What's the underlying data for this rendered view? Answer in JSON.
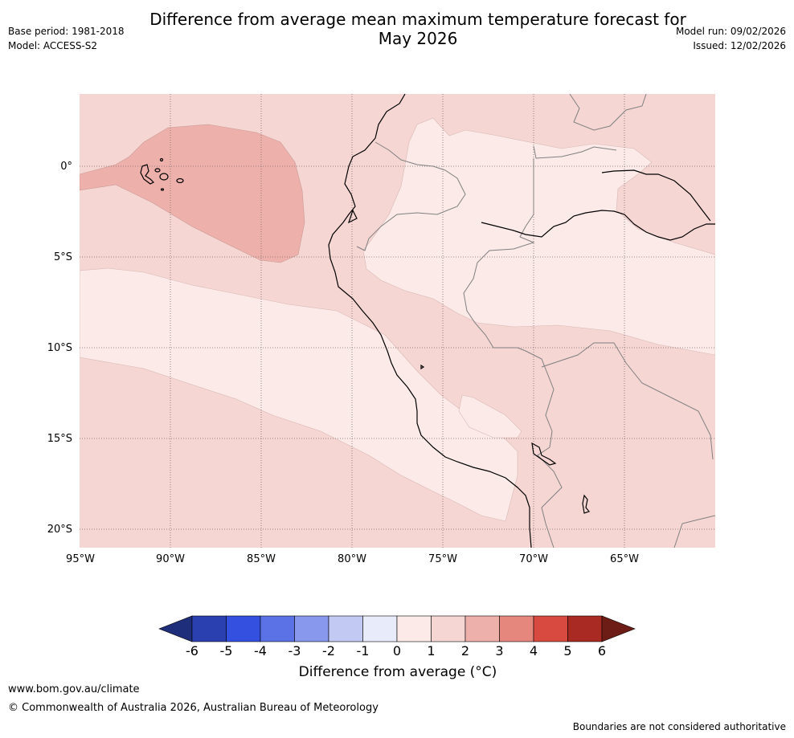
{
  "header": {
    "title_line1": "Difference from average mean maximum temperature forecast for",
    "title_line2": "May 2026",
    "base_period": "Base period: 1981-2018",
    "model": "Model: ACCESS-S2",
    "model_run": "Model run: 09/02/2026",
    "issued": "Issued: 12/02/2026"
  },
  "map": {
    "lat_labels": [
      "0°",
      "5°S",
      "10°S",
      "15°S",
      "20°S"
    ],
    "lon_labels": [
      "95°W",
      "90°W",
      "85°W",
      "80°W",
      "75°W",
      "70°W",
      "65°W"
    ],
    "colors": {
      "band_0_1": "#fbeae8",
      "band_1_2": "#f5d6d3",
      "band_2_3": "#eeb0aa",
      "coast": "#000000",
      "border": "#808080",
      "grid": "#7a6a6a"
    }
  },
  "colorbar": {
    "ticks": [
      "-6",
      "-5",
      "-4",
      "-3",
      "-2",
      "-1",
      "0",
      "1",
      "2",
      "3",
      "4",
      "5",
      "6"
    ],
    "colors": [
      "#1f2e7a",
      "#2a3fb0",
      "#3350e0",
      "#5a72e6",
      "#8898ec",
      "#c2caf3",
      "#e8ebfa",
      "#fbeae8",
      "#f5d6d3",
      "#eeb0aa",
      "#e6877d",
      "#d84a3f",
      "#a82a22",
      "#6e1c16"
    ],
    "label": "Difference from average (°C)"
  },
  "footer": {
    "url": "www.bom.gov.au/climate",
    "copyright": "© Commonwealth of Australia 2026, Australian Bureau of Meteorology",
    "disclaimer": "Boundaries are not considered authoritative"
  }
}
